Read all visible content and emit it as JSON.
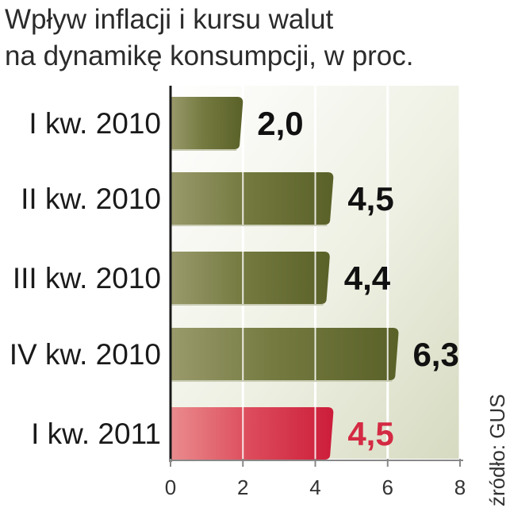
{
  "title": {
    "line1": "Wpływ inflacji i kursu walut",
    "line2": "na dynamikę konsumpcji, w proc."
  },
  "source": "źródło: GUS",
  "colors": {
    "bar_green": "#6e7339",
    "bar_highlight": "#d42a43",
    "label_dark": "#111111",
    "label_highlight": "#d42a43",
    "background_band": "#e3e6d2"
  },
  "chart_data": {
    "type": "bar",
    "orientation": "horizontal",
    "categories": [
      "I kw. 2010",
      "II kw. 2010",
      "III kw. 2010",
      "IV kw. 2010",
      "I kw. 2011"
    ],
    "values": [
      2.0,
      4.5,
      4.4,
      6.3,
      4.5
    ],
    "value_labels": [
      "2,0",
      "4,5",
      "4,4",
      "6,3",
      "4,5"
    ],
    "highlight_index": 4,
    "xlim": [
      0,
      8
    ],
    "x_ticks": [
      "0",
      "2",
      "4",
      "6",
      "8"
    ],
    "grid": true
  }
}
